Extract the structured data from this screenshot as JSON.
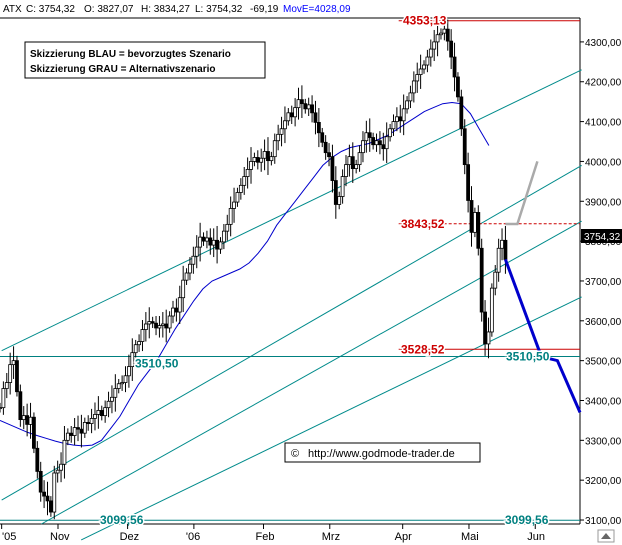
{
  "header": {
    "symbol": "ATX",
    "close": "C: 3754,32",
    "open": "O: 3827,07",
    "high": "H: 3834,27",
    "low": "L: 3754,32",
    "change": "-69,19",
    "ma": "MovE=4028,09",
    "ma_color": "#0000ff"
  },
  "legend": {
    "line1": "Skizzierung BLAU = bevorzugtes Szenario",
    "line2": "Skizzierung GRAU = Alternativszenario"
  },
  "watermark": {
    "symbol": "©",
    "url": "http://www.godmode-trader.de"
  },
  "price_tag": "3754,32",
  "chart_data": {
    "type": "candlestick",
    "ylim": [
      3090,
      4360
    ],
    "y_ticks": [
      3100,
      3200,
      3300,
      3400,
      3500,
      3600,
      3700,
      3800,
      3900,
      4000,
      4100,
      4200,
      4300
    ],
    "y_tick_labels": [
      "3100,00",
      "3200,00",
      "3300,00",
      "3400,00",
      "3500,00",
      "3600,00",
      "3700,00",
      "3800,00",
      "3900,00",
      "4000,00",
      "4100,00",
      "4200,00",
      "4300,00"
    ],
    "x_labels": [
      "'05",
      "Nov",
      "Dez",
      "'06",
      "Feb",
      "Mrz",
      "Apr",
      "Mai",
      "Jun"
    ],
    "x_label_bars": [
      0,
      17,
      38,
      58,
      79,
      99,
      121,
      141,
      161
    ],
    "bar_count": 175,
    "series": [
      {
        "values_close": [
          3382,
          3430,
          3445,
          3490,
          3500,
          3422,
          3352,
          3362,
          3340,
          3358,
          3280,
          3222,
          3170,
          3160,
          3148,
          3120,
          3218,
          3225,
          3240,
          3300,
          3318,
          3312,
          3332,
          3328,
          3318,
          3345,
          3342,
          3355,
          3365,
          3375,
          3362,
          3382,
          3398,
          3408,
          3430,
          3442,
          3445,
          3462,
          3485,
          3520,
          3540,
          3548,
          3578,
          3592,
          3598,
          3594,
          3582,
          3588,
          3592,
          3582,
          3612,
          3632,
          3622,
          3658,
          3702,
          3720,
          3742,
          3762,
          3785,
          3810,
          3800,
          3808,
          3790,
          3802,
          3780,
          3798,
          3825,
          3842,
          3882,
          3898,
          3922,
          3940,
          3962,
          3980,
          4000,
          4010,
          3998,
          4008,
          4025,
          4002,
          4012,
          4052,
          4068,
          4082,
          4102,
          4122,
          4112,
          4135,
          4155,
          4145,
          4132,
          4142,
          4122,
          4098,
          4072,
          4048,
          4022,
          4012,
          3952,
          3892,
          3912,
          3962,
          3992,
          4012,
          3982,
          3992,
          4022,
          4052,
          4072,
          4060,
          4042,
          4052,
          4042,
          4032,
          4062,
          4082,
          4100,
          4112,
          4102,
          4132,
          4152,
          4172,
          4202,
          4218,
          4232,
          4242,
          4262,
          4282,
          4300,
          4318,
          4322,
          4332,
          4302,
          4262,
          4212,
          4162,
          4082,
          3992,
          3902,
          3822,
          3872,
          3782,
          3622,
          3542,
          3572,
          3682,
          3722,
          3782,
          3802,
          3754
        ],
        "ma_close": [
          3350,
          3340,
          3330,
          3320,
          3312,
          3305,
          3298,
          3292,
          3288,
          3286,
          3288,
          3300,
          3330,
          3360,
          3400,
          3440,
          3470,
          3500,
          3540,
          3580,
          3615,
          3650,
          3680,
          3700,
          3710,
          3720,
          3730,
          3745,
          3770,
          3800,
          3840,
          3870,
          3900,
          3930,
          3960,
          3990,
          4010,
          4025,
          4035,
          4040,
          4045,
          4055,
          4065,
          4080,
          4095,
          4110,
          4125,
          4135,
          4145,
          4148,
          4145,
          4120,
          4080,
          4040
        ],
        "color": "#000000",
        "ma_color": "#0000cc"
      }
    ],
    "levels": [
      {
        "value": 4353.13,
        "label": "4353,13",
        "color": "#cc0000"
      },
      {
        "value": 3843.52,
        "label": "3843,52",
        "color": "#cc0000"
      },
      {
        "value": 3528.52,
        "label": "3528,52",
        "color": "#cc0000"
      },
      {
        "value": 3510.5,
        "label": "3510,50",
        "color": "#008080"
      },
      {
        "value": 3510.5,
        "label": "3510,50",
        "color": "#008080"
      },
      {
        "value": 3099.56,
        "label": "3099,56",
        "color": "#008080"
      },
      {
        "value": 3099.56,
        "label": "3099,56",
        "color": "#008080"
      }
    ],
    "channel_color": "#008b8b",
    "scenario_blue": {
      "color": "#0000cc",
      "values": [
        3754,
        3510,
        3500,
        3370
      ]
    },
    "scenario_gray": {
      "color": "#aaaaaa",
      "values": [
        3843,
        4000
      ]
    },
    "grid": false
  }
}
